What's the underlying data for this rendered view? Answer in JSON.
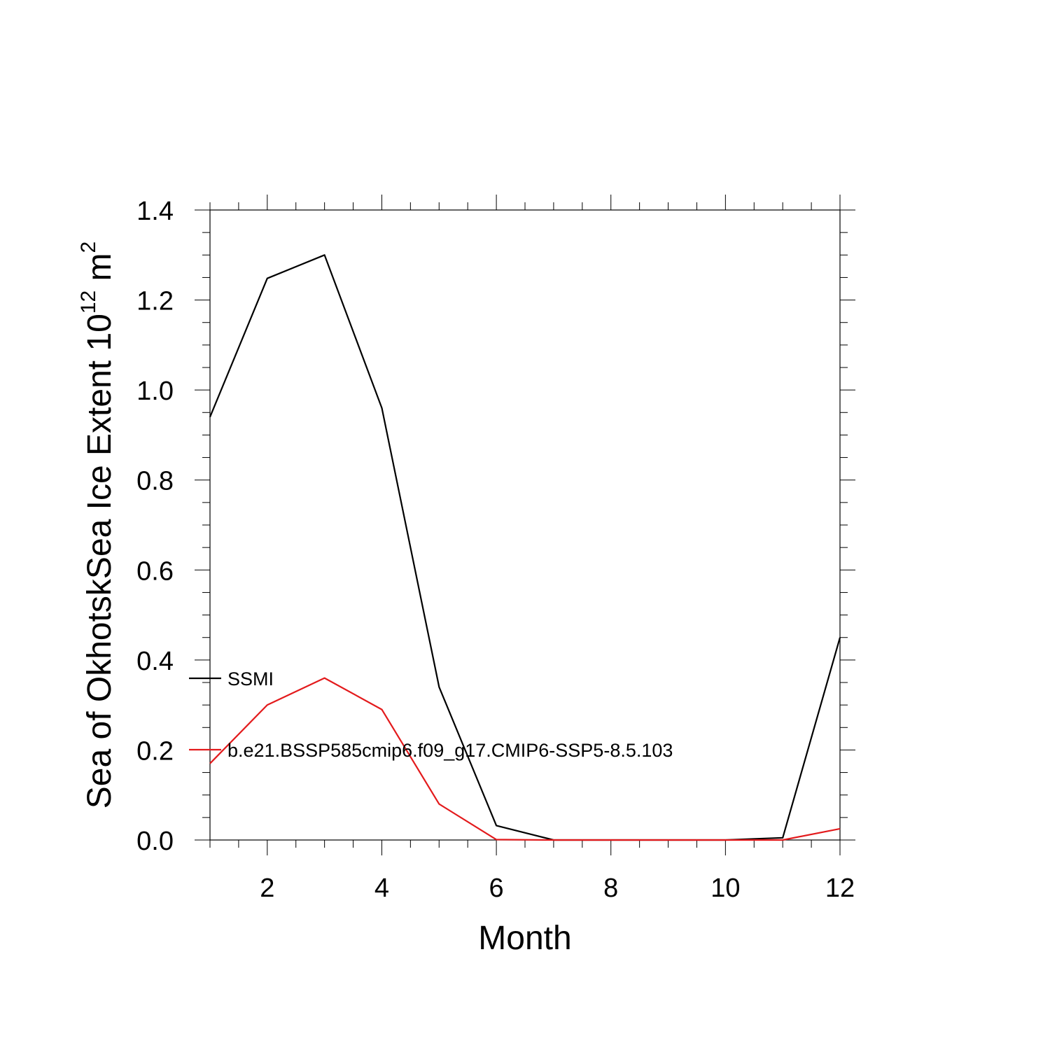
{
  "chart_data": {
    "type": "line",
    "xlabel": "Month",
    "ylabel": {
      "prefix": "Sea of OkhotskSea Ice Extent 10",
      "superscript1": "12",
      "unit": " m",
      "superscript2": "2"
    },
    "xlim": [
      1,
      12
    ],
    "ylim": [
      0,
      1.4
    ],
    "x_ticks": [
      2,
      4,
      6,
      8,
      10,
      12
    ],
    "x_tick_labels": [
      "2",
      "4",
      "6",
      "8",
      "10",
      "12"
    ],
    "y_ticks": [
      0,
      0.2,
      0.4,
      0.6,
      0.8,
      1.0,
      1.2,
      1.4
    ],
    "y_tick_labels": [
      "0.0",
      "0.2",
      "0.4",
      "0.6",
      "0.8",
      "1.0",
      "1.2",
      "1.4"
    ],
    "grid": false,
    "legend_position": "inside-left",
    "x": [
      1,
      2,
      3,
      4,
      5,
      6,
      7,
      8,
      9,
      10,
      11,
      12
    ],
    "series": [
      {
        "name": "SSMI",
        "color": "#000000",
        "values": [
          0.94,
          1.248,
          1.3,
          0.96,
          0.34,
          0.032,
          0.0,
          0.0,
          0.0,
          0.0,
          0.005,
          0.45
        ]
      },
      {
        "name": "b.e21.BSSP585cmip6.f09_g17.CMIP6-SSP5-8.5.103",
        "color": "#e31a1c",
        "values": [
          0.17,
          0.3,
          0.36,
          0.29,
          0.08,
          0.001,
          0.0,
          0.0,
          0.0,
          0.0,
          0.0,
          0.025
        ]
      }
    ]
  }
}
